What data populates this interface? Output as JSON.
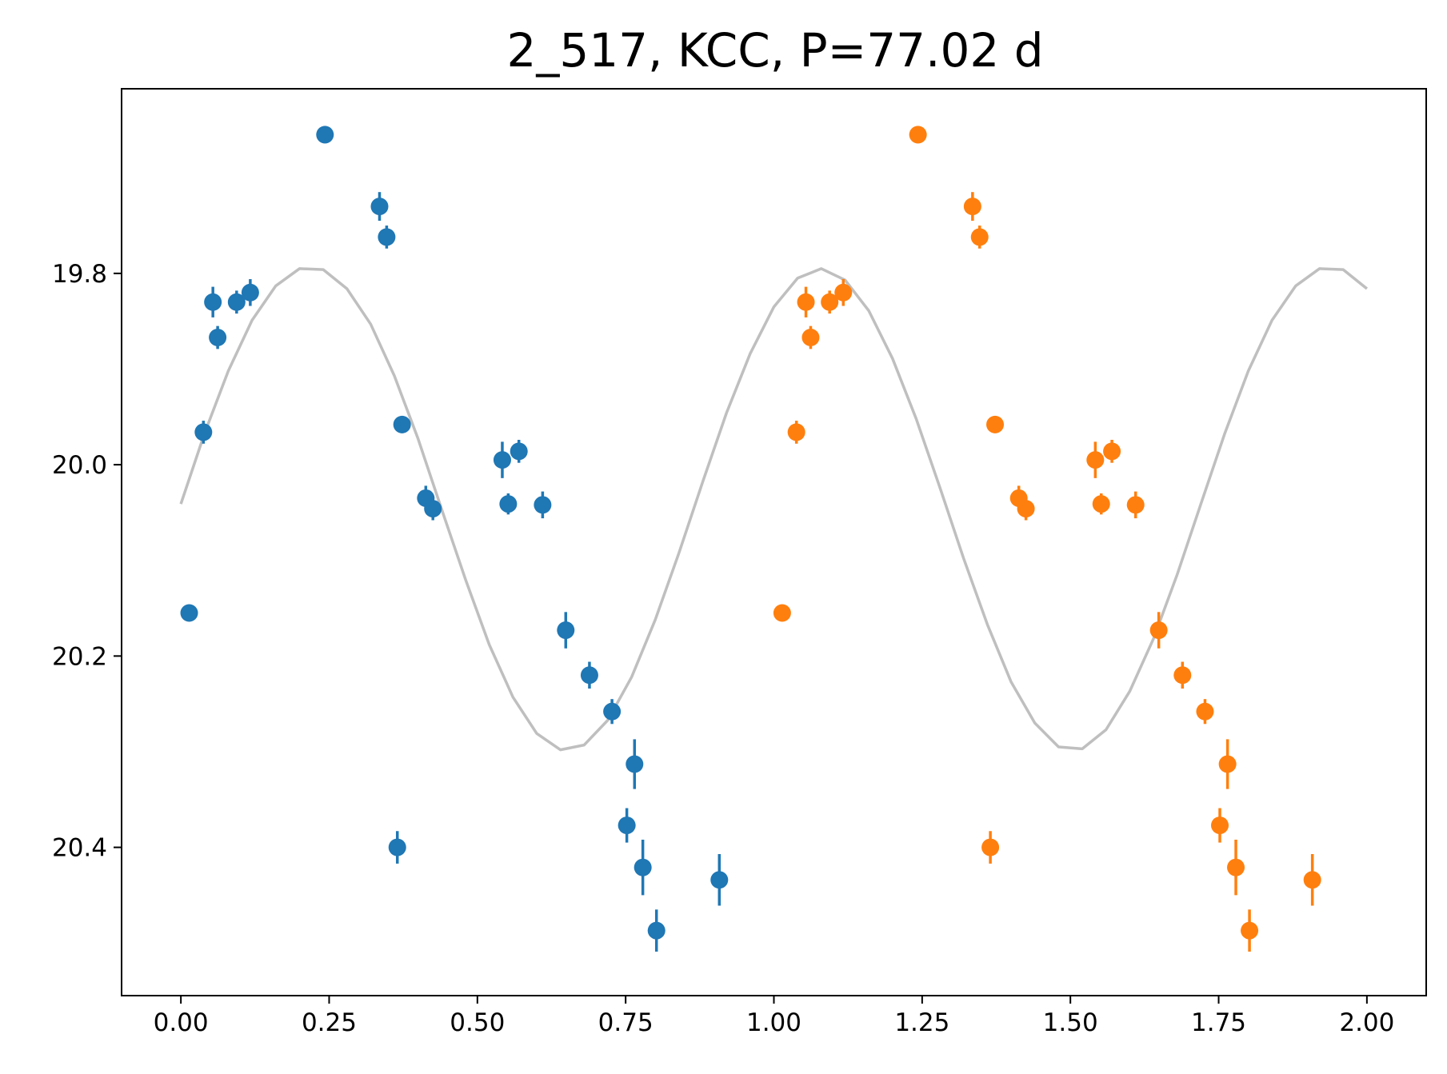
{
  "chart_data": {
    "type": "scatter",
    "title": "2_517, KCC, P=77.02 d",
    "xlabel": "",
    "ylabel": "",
    "xlim": [
      -0.1,
      2.1
    ],
    "ylim": [
      20.555,
      19.607
    ],
    "y_inverted": true,
    "grid": false,
    "xticks": [
      0.0,
      0.25,
      0.5,
      0.75,
      1.0,
      1.25,
      1.5,
      1.75,
      2.0
    ],
    "xtick_labels": [
      "0.00",
      "0.25",
      "0.50",
      "0.75",
      "1.00",
      "1.25",
      "1.50",
      "1.75",
      "2.00"
    ],
    "yticks": [
      19.8,
      20.0,
      20.2,
      20.4
    ],
    "ytick_labels": [
      "19.8",
      "20.0",
      "20.2",
      "20.4"
    ],
    "colors": {
      "series1": "#1f77b4",
      "series2": "#ff7f0e",
      "model": "#bfbfbf"
    },
    "series": [
      {
        "points": [
          {
            "x": 0.014,
            "y": 20.155,
            "err": 0.007
          },
          {
            "x": 0.038,
            "y": 19.966,
            "err": 0.012
          },
          {
            "x": 0.054,
            "y": 19.83,
            "err": 0.016
          },
          {
            "x": 0.062,
            "y": 19.867,
            "err": 0.012
          },
          {
            "x": 0.094,
            "y": 19.83,
            "err": 0.012
          },
          {
            "x": 0.117,
            "y": 19.82,
            "err": 0.014
          },
          {
            "x": 0.243,
            "y": 19.655,
            "err": 0.009
          },
          {
            "x": 0.335,
            "y": 19.73,
            "err": 0.015
          },
          {
            "x": 0.347,
            "y": 19.762,
            "err": 0.012
          },
          {
            "x": 0.365,
            "y": 20.4,
            "err": 0.017
          },
          {
            "x": 0.373,
            "y": 19.958,
            "err": 0.009
          },
          {
            "x": 0.413,
            "y": 20.035,
            "err": 0.013
          },
          {
            "x": 0.425,
            "y": 20.046,
            "err": 0.012
          },
          {
            "x": 0.542,
            "y": 19.995,
            "err": 0.019
          },
          {
            "x": 0.552,
            "y": 20.041,
            "err": 0.011
          },
          {
            "x": 0.57,
            "y": 19.986,
            "err": 0.012
          },
          {
            "x": 0.61,
            "y": 20.042,
            "err": 0.014
          },
          {
            "x": 0.649,
            "y": 20.173,
            "err": 0.019
          },
          {
            "x": 0.689,
            "y": 20.22,
            "err": 0.014
          },
          {
            "x": 0.727,
            "y": 20.258,
            "err": 0.013
          },
          {
            "x": 0.765,
            "y": 20.313,
            "err": 0.026
          },
          {
            "x": 0.752,
            "y": 20.377,
            "err": 0.018
          },
          {
            "x": 0.779,
            "y": 20.421,
            "err": 0.029
          },
          {
            "x": 0.802,
            "y": 20.487,
            "err": 0.022
          },
          {
            "x": 0.908,
            "y": 20.434,
            "err": 0.027
          }
        ]
      },
      {
        "points": [
          {
            "x": 1.014,
            "y": 20.155,
            "err": 0.007
          },
          {
            "x": 1.038,
            "y": 19.966,
            "err": 0.012
          },
          {
            "x": 1.054,
            "y": 19.83,
            "err": 0.016
          },
          {
            "x": 1.062,
            "y": 19.867,
            "err": 0.012
          },
          {
            "x": 1.094,
            "y": 19.83,
            "err": 0.012
          },
          {
            "x": 1.117,
            "y": 19.82,
            "err": 0.014
          },
          {
            "x": 1.243,
            "y": 19.655,
            "err": 0.009
          },
          {
            "x": 1.335,
            "y": 19.73,
            "err": 0.015
          },
          {
            "x": 1.347,
            "y": 19.762,
            "err": 0.012
          },
          {
            "x": 1.365,
            "y": 20.4,
            "err": 0.017
          },
          {
            "x": 1.373,
            "y": 19.958,
            "err": 0.009
          },
          {
            "x": 1.413,
            "y": 20.035,
            "err": 0.013
          },
          {
            "x": 1.425,
            "y": 20.046,
            "err": 0.012
          },
          {
            "x": 1.542,
            "y": 19.995,
            "err": 0.019
          },
          {
            "x": 1.552,
            "y": 20.041,
            "err": 0.011
          },
          {
            "x": 1.57,
            "y": 19.986,
            "err": 0.012
          },
          {
            "x": 1.61,
            "y": 20.042,
            "err": 0.014
          },
          {
            "x": 1.649,
            "y": 20.173,
            "err": 0.019
          },
          {
            "x": 1.689,
            "y": 20.22,
            "err": 0.014
          },
          {
            "x": 1.727,
            "y": 20.258,
            "err": 0.013
          },
          {
            "x": 1.765,
            "y": 20.313,
            "err": 0.026
          },
          {
            "x": 1.752,
            "y": 20.377,
            "err": 0.018
          },
          {
            "x": 1.779,
            "y": 20.421,
            "err": 0.029
          },
          {
            "x": 1.802,
            "y": 20.487,
            "err": 0.022
          },
          {
            "x": 1.908,
            "y": 20.434,
            "err": 0.027
          }
        ]
      }
    ],
    "model_curve": {
      "x": [
        0.0,
        0.04,
        0.08,
        0.12,
        0.16,
        0.2,
        0.24,
        0.28,
        0.32,
        0.36,
        0.4,
        0.44,
        0.48,
        0.52,
        0.56,
        0.6,
        0.64,
        0.68,
        0.72,
        0.76,
        0.8,
        0.84,
        0.88,
        0.92,
        0.96,
        1.0,
        1.04,
        1.08,
        1.12,
        1.16,
        1.2,
        1.24,
        1.28,
        1.32,
        1.36,
        1.4,
        1.44,
        1.48,
        1.52,
        1.56,
        1.6,
        1.64,
        1.68,
        1.72,
        1.76,
        1.8,
        1.84,
        1.88,
        1.92,
        1.96,
        2.0
      ],
      "y": [
        20.041,
        19.967,
        19.902,
        19.849,
        19.813,
        19.795,
        19.796,
        19.816,
        19.853,
        19.907,
        19.973,
        20.047,
        20.12,
        20.188,
        20.243,
        20.281,
        20.298,
        20.293,
        20.267,
        20.222,
        20.162,
        20.092,
        20.018,
        19.946,
        19.884,
        19.835,
        19.805,
        19.795,
        19.807,
        19.839,
        19.889,
        19.952,
        20.024,
        20.098,
        20.167,
        20.227,
        20.27,
        20.295,
        20.297,
        20.277,
        20.237,
        20.182,
        20.115,
        20.041,
        19.968,
        19.902,
        19.849,
        19.813,
        19.795,
        19.796,
        19.816
      ]
    }
  }
}
